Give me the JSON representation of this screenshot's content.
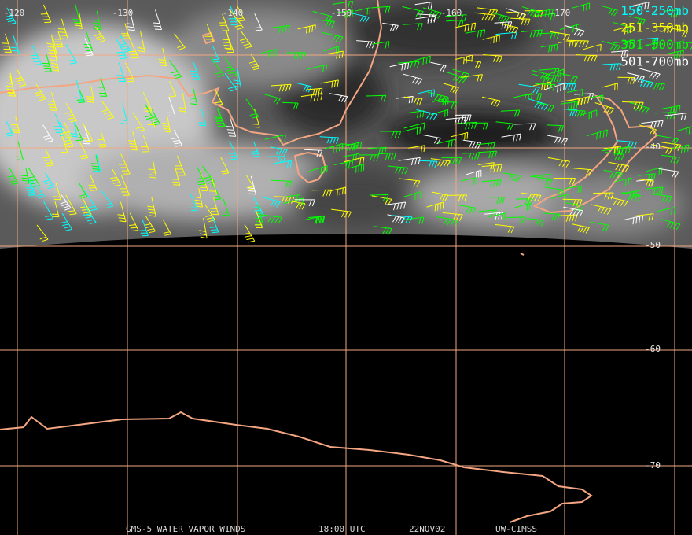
{
  "longitude_labels": [
    "-120",
    "-130",
    "-140",
    "-150",
    "-160",
    "-170"
  ],
  "latitude_labels": [
    "-40",
    "-50",
    "-60",
    "-70"
  ],
  "legend": [
    {
      "label": "150-250mb",
      "color": "#00ffff"
    },
    {
      "label": "251-350mb",
      "color": "#ffff00"
    },
    {
      "label": "351-500mb",
      "color": "#00ff00"
    },
    {
      "label": "501-700mb",
      "color": "#ffffff"
    }
  ],
  "footer": [
    "GMS-5 WATER VAPOR WINDS",
    "18:00 UTC",
    "22NOV02",
    "UW-CIMSS"
  ]
}
